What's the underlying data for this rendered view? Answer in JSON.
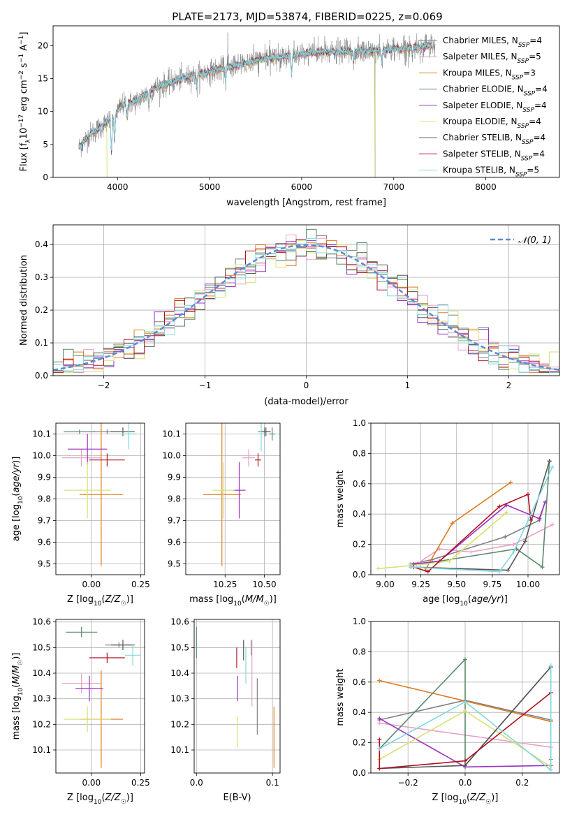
{
  "title": "PLATE=2173, MJD=53874, FIBERID=0225, z=0.069",
  "colors": [
    "#808080",
    "#e8a0c8",
    "#e07b20",
    "#5a8a6a",
    "#9b30c0",
    "#d8e070",
    "#555555",
    "#b01020",
    "#80d8e0"
  ],
  "chart_data": [
    {
      "id": "spectrum",
      "type": "line",
      "xlabel": "wavelength [Angstrom, rest frame]",
      "ylabel": "Flux [f_λ10^-17 erg cm^-2 s^-1 A^-1]",
      "xlim": [
        3300,
        8800
      ],
      "ylim": [
        0,
        23
      ],
      "xticks": [
        4000,
        5000,
        6000,
        7000,
        8000
      ],
      "yticks": [
        0,
        5,
        10,
        15,
        20
      ],
      "grid": false,
      "legend_position": "top-right",
      "continuum_x": [
        3580,
        3700,
        3850,
        3950,
        4050,
        4200,
        4400,
        4700,
        5000,
        5300,
        5600,
        5900,
        6200,
        6500,
        6800,
        7100,
        7400
      ],
      "continuum_y": [
        4.5,
        6.5,
        8.0,
        9.0,
        11.0,
        11.5,
        13.5,
        15.0,
        16.0,
        17.0,
        18.0,
        18.5,
        19.0,
        19.0,
        19.2,
        19.5,
        20.0
      ],
      "series": [
        {
          "name": "Chabrier MILES, N_SSP=4"
        },
        {
          "name": "Salpeter MILES, N_SSP=5"
        },
        {
          "name": "Kroupa MILES, N_SSP=3"
        },
        {
          "name": "Chabrier ELODIE, N_SSP=4"
        },
        {
          "name": "Salpeter ELODIE, N_SSP=4"
        },
        {
          "name": "Kroupa ELODIE, N_SSP=4"
        },
        {
          "name": "Chabrier STELIB, N_SSP=4"
        },
        {
          "name": "Salpeter STELIB, N_SSP=4"
        },
        {
          "name": "Kroupa STELIB, N_SSP=5"
        }
      ]
    },
    {
      "id": "residuals",
      "type": "histogram",
      "xlabel": "(data-model)/error",
      "ylabel": "Normed distribution",
      "xlim": [
        -2.5,
        2.5
      ],
      "ylim": [
        0,
        0.46
      ],
      "xticks": [
        -2,
        -1,
        0,
        1,
        2
      ],
      "yticks": [
        0.0,
        0.1,
        0.2,
        0.3,
        0.4
      ],
      "grid": true,
      "legend_position": "top-right",
      "legend_label": "𝒩(0, 1)",
      "bin_width": 0.1,
      "normal": {
        "mean": 0,
        "sigma": 1
      }
    },
    {
      "id": "age-vs-Z",
      "type": "errorbar",
      "xlabel": "Z [log10(Z/Z☉)]",
      "ylabel": "age  [log10(age/yr)]",
      "xlim": [
        -0.18,
        0.27
      ],
      "ylim": [
        9.45,
        10.15
      ],
      "xticks": [
        0.0,
        0.25
      ],
      "yticks": [
        9.5,
        9.6,
        9.7,
        9.8,
        9.9,
        10.0,
        10.1
      ],
      "grid": true,
      "points": [
        {
          "x": 0.08,
          "y": 10.11,
          "xerr": 0.07,
          "yerr": 0.01,
          "c": 0
        },
        {
          "x": -0.05,
          "y": 9.99,
          "xerr": 0.1,
          "yerr": 0.04,
          "c": 1
        },
        {
          "x": 0.05,
          "y": 9.82,
          "xerr": 0.11,
          "yerr": 0.33,
          "c": 2
        },
        {
          "x": -0.06,
          "y": 10.11,
          "xerr": 0.08,
          "yerr": 0.01,
          "c": 3
        },
        {
          "x": -0.02,
          "y": 10.03,
          "xerr": 0.1,
          "yerr": 0.07,
          "c": 4
        },
        {
          "x": -0.02,
          "y": 9.84,
          "xerr": 0.12,
          "yerr": 0.13,
          "c": 5
        },
        {
          "x": 0.16,
          "y": 10.11,
          "xerr": 0.06,
          "yerr": 0.02,
          "c": 6
        },
        {
          "x": 0.08,
          "y": 9.98,
          "xerr": 0.09,
          "yerr": 0.03,
          "c": 7
        },
        {
          "x": 0.19,
          "y": 10.1,
          "xerr": 0.04,
          "yerr": 0.07,
          "c": 8
        }
      ]
    },
    {
      "id": "age-vs-mass",
      "type": "errorbar",
      "xlabel": "mass [log10(M/M☉)]",
      "ylabel": "",
      "xlim": [
        10.0,
        10.6
      ],
      "ylim": [
        9.45,
        10.15
      ],
      "xticks": [
        10.25,
        10.5
      ],
      "yticks": [
        9.5,
        9.6,
        9.7,
        9.8,
        9.9,
        10.0,
        10.1
      ],
      "grid": true,
      "points": [
        {
          "x": 10.5,
          "y": 10.11,
          "xerr": 0.04,
          "yerr": 0.02,
          "c": 0
        },
        {
          "x": 10.4,
          "y": 9.99,
          "xerr": 0.04,
          "yerr": 0.04,
          "c": 1
        },
        {
          "x": 10.23,
          "y": 9.82,
          "xerr": 0.12,
          "yerr": 0.33,
          "c": 2
        },
        {
          "x": 10.55,
          "y": 10.1,
          "xerr": 0.02,
          "yerr": 0.03,
          "c": 3
        },
        {
          "x": 10.34,
          "y": 9.84,
          "xerr": 0.04,
          "yerr": 0.13,
          "c": 4
        },
        {
          "x": 10.24,
          "y": 9.84,
          "xerr": 0.07,
          "yerr": 0.13,
          "c": 5
        },
        {
          "x": 10.51,
          "y": 10.11,
          "xerr": 0.03,
          "yerr": 0.02,
          "c": 6
        },
        {
          "x": 10.46,
          "y": 9.98,
          "xerr": 0.02,
          "yerr": 0.03,
          "c": 7
        },
        {
          "x": 10.48,
          "y": 10.1,
          "xerr": 0.02,
          "yerr": 0.08,
          "c": 8
        }
      ]
    },
    {
      "id": "mass-weight-vs-age",
      "type": "line",
      "xlabel": "age  [log10(age/yr)]",
      "ylabel": "mass weight",
      "xlim": [
        8.9,
        10.22
      ],
      "ylim": [
        0,
        1
      ],
      "xticks": [
        9.0,
        9.25,
        9.5,
        9.75,
        10.0
      ],
      "yticks": [
        0.0,
        0.2,
        0.4,
        0.6,
        0.8,
        1.0
      ],
      "grid": true,
      "series": [
        {
          "c": 0,
          "x": [
            9.18,
            9.33,
            9.84,
            10.08,
            10.12
          ],
          "y": [
            0.07,
            0.1,
            0.25,
            0.36,
            0.48
          ]
        },
        {
          "c": 1,
          "x": [
            9.22,
            9.38,
            9.6,
            9.9,
            10.17
          ],
          "y": [
            0.07,
            0.17,
            0.15,
            0.2,
            0.33
          ]
        },
        {
          "c": 2,
          "x": [
            9.28,
            9.47,
            9.88
          ],
          "y": [
            0.03,
            0.34,
            0.61
          ]
        },
        {
          "c": 3,
          "x": [
            9.18,
            9.92,
            10.1,
            10.15
          ],
          "y": [
            0.06,
            0.17,
            0.05,
            0.75
          ]
        },
        {
          "c": 4,
          "x": [
            9.2,
            9.38,
            9.85,
            10.08,
            10.12
          ],
          "y": [
            0.07,
            0.09,
            0.46,
            0.37,
            0.48
          ]
        },
        {
          "c": 5,
          "x": [
            8.95,
            9.18,
            9.45,
            9.85
          ],
          "y": [
            0.04,
            0.06,
            0.09,
            0.41
          ]
        },
        {
          "c": 6,
          "x": [
            9.18,
            9.86,
            9.98,
            10.15
          ],
          "y": [
            0.05,
            0.03,
            0.22,
            0.75
          ]
        },
        {
          "c": 7,
          "x": [
            9.2,
            9.3,
            9.8,
            10.0,
            10.02
          ],
          "y": [
            0.05,
            0.02,
            0.45,
            0.53,
            0.36
          ]
        },
        {
          "c": 8,
          "x": [
            9.18,
            9.8,
            9.9,
            10.17
          ],
          "y": [
            0.05,
            0.02,
            0.15,
            0.71
          ]
        }
      ]
    },
    {
      "id": "mass-vs-Z",
      "type": "errorbar",
      "xlabel": "Z [log10(Z/Z☉)]",
      "ylabel": "mass [log10(M/M☉)]",
      "xlim": [
        -0.18,
        0.27
      ],
      "ylim": [
        10.01,
        10.61
      ],
      "xticks": [
        0.0,
        0.25
      ],
      "yticks": [
        10.1,
        10.2,
        10.3,
        10.4,
        10.5,
        10.6
      ],
      "grid": true,
      "points": [
        {
          "x": 0.14,
          "y": 10.51,
          "xerr": 0.07,
          "yerr": 0.01,
          "c": 0
        },
        {
          "x": -0.05,
          "y": 10.36,
          "xerr": 0.1,
          "yerr": 0.04,
          "c": 1
        },
        {
          "x": 0.05,
          "y": 10.22,
          "xerr": 0.11,
          "yerr": 0.19,
          "c": 2
        },
        {
          "x": -0.05,
          "y": 10.56,
          "xerr": 0.08,
          "yerr": 0.02,
          "c": 3
        },
        {
          "x": -0.01,
          "y": 10.34,
          "xerr": 0.07,
          "yerr": 0.05,
          "c": 4
        },
        {
          "x": -0.02,
          "y": 10.22,
          "xerr": 0.12,
          "yerr": 0.05,
          "c": 5
        },
        {
          "x": 0.16,
          "y": 10.51,
          "xerr": 0.06,
          "yerr": 0.02,
          "c": 6
        },
        {
          "x": 0.08,
          "y": 10.46,
          "xerr": 0.09,
          "yerr": 0.02,
          "c": 7
        },
        {
          "x": 0.21,
          "y": 10.47,
          "xerr": 0.04,
          "yerr": 0.04,
          "c": 8
        }
      ]
    },
    {
      "id": "mass-vs-EBV",
      "type": "errorbar",
      "xlabel": "E(B-V)",
      "ylabel": "",
      "xlim": [
        -0.003,
        0.11
      ],
      "ylim": [
        10.01,
        10.61
      ],
      "xticks": [
        0.0,
        0.1
      ],
      "yticks": [
        10.1,
        10.2,
        10.3,
        10.4,
        10.5,
        10.6
      ],
      "grid": true,
      "points": [
        {
          "x": 0.072,
          "y": 10.5,
          "xerr": 0,
          "yerr": 0.03,
          "c": 0
        },
        {
          "x": 0.073,
          "y": 10.4,
          "xerr": 0,
          "yerr": 0.13,
          "c": 1
        },
        {
          "x": 0.102,
          "y": 10.15,
          "xerr": 0,
          "yerr": 0.12,
          "c": 2
        },
        {
          "x": 0.0,
          "y": 10.52,
          "xerr": 0,
          "yerr": 0.06,
          "c": 3
        },
        {
          "x": 0.054,
          "y": 10.34,
          "xerr": 0,
          "yerr": 0.05,
          "c": 4
        },
        {
          "x": 0.054,
          "y": 10.17,
          "xerr": 0,
          "yerr": 0.06,
          "c": 5
        },
        {
          "x": 0.062,
          "y": 10.49,
          "xerr": 0,
          "yerr": 0.04,
          "c": 6
        },
        {
          "x": 0.053,
          "y": 10.46,
          "xerr": 0,
          "yerr": 0.04,
          "c": 7
        },
        {
          "x": 0.065,
          "y": 10.43,
          "xerr": 0,
          "yerr": 0.07,
          "c": 8
        },
        {
          "x": 0.08,
          "y": 10.27,
          "xerr": 0,
          "yerr": 0.11,
          "c": 0
        }
      ]
    },
    {
      "id": "mass-weight-vs-Z",
      "type": "line",
      "xlabel": "Z [log10(Z/Z☉)]",
      "ylabel": "mass weight",
      "xlim": [
        -0.33,
        0.33
      ],
      "ylim": [
        0,
        1
      ],
      "xticks": [
        -0.2,
        0.0,
        0.2
      ],
      "yticks": [
        0.0,
        0.2,
        0.4,
        0.6,
        0.8,
        1.0
      ],
      "grid": true,
      "series": [
        {
          "c": 0,
          "x": [
            -0.3,
            0.0,
            0.3,
            0.3
          ],
          "y": [
            0.35,
            0.48,
            0.35,
            0.09
          ]
        },
        {
          "c": 1,
          "x": [
            -0.3,
            0.3
          ],
          "y": [
            0.33,
            0.17
          ]
        },
        {
          "c": 2,
          "x": [
            -0.3,
            0.3
          ],
          "y": [
            0.61,
            0.34
          ]
        },
        {
          "c": 3,
          "x": [
            -0.3,
            0.0,
            0.0,
            0.3
          ],
          "y": [
            0.16,
            0.75,
            0.05,
            0.7
          ]
        },
        {
          "c": 4,
          "x": [
            -0.3,
            0.0,
            0.3
          ],
          "y": [
            0.36,
            0.04,
            0.05
          ]
        },
        {
          "c": 5,
          "x": [
            -0.3,
            0.0,
            0.3
          ],
          "y": [
            0.09,
            0.41,
            0.04
          ]
        },
        {
          "c": 6,
          "x": [
            -0.3,
            0.0,
            0.3
          ],
          "y": [
            0.03,
            0.05,
            0.7
          ]
        },
        {
          "c": 7,
          "x": [
            -0.3,
            -0.3,
            0.0,
            0.3
          ],
          "y": [
            0.22,
            0.03,
            0.08,
            0.53
          ]
        },
        {
          "c": 8,
          "x": [
            -0.3,
            0.0,
            0.3,
            0.3
          ],
          "y": [
            0.16,
            0.47,
            0.02,
            0.71
          ]
        }
      ]
    }
  ]
}
